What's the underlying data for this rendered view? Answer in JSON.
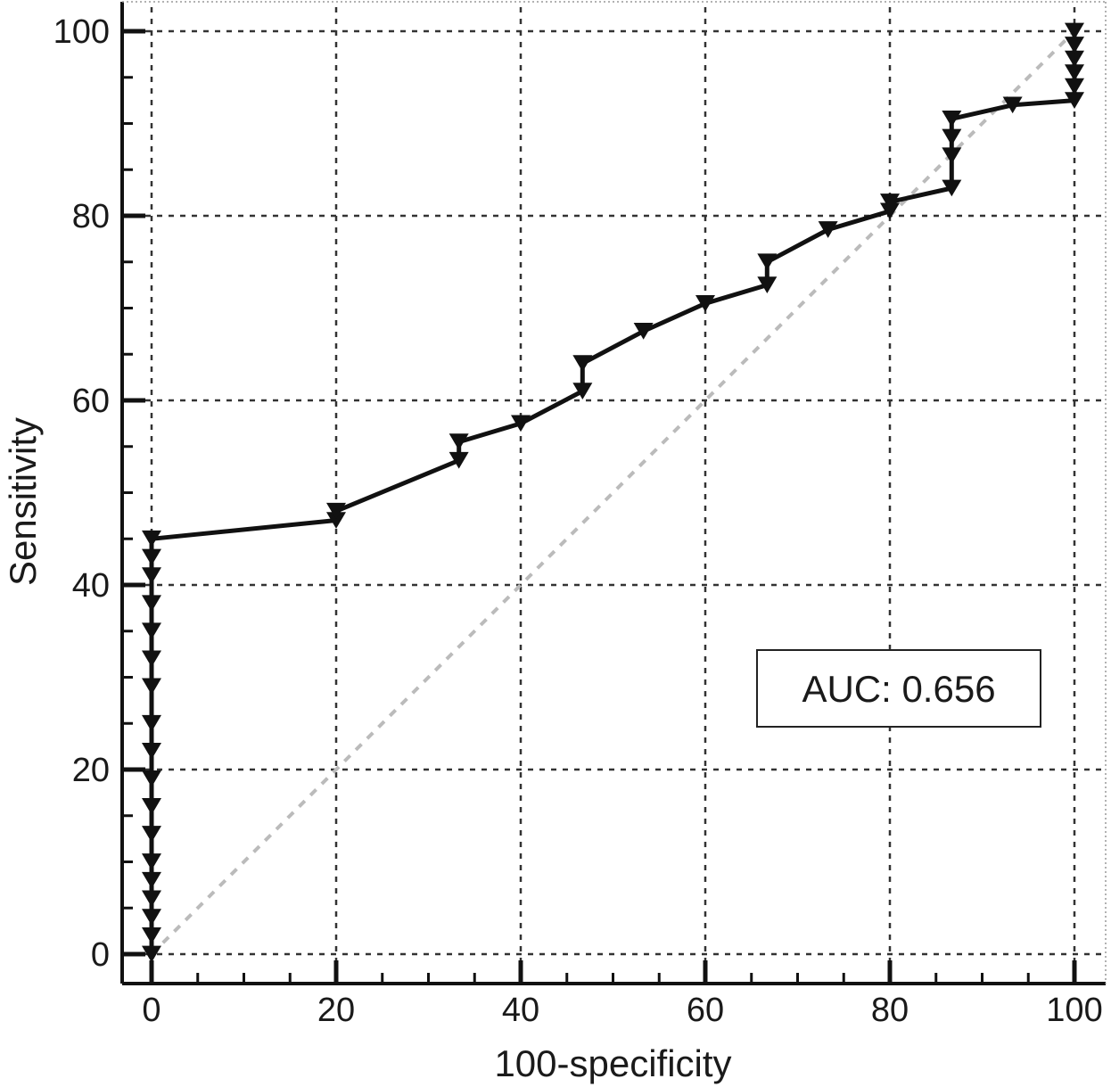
{
  "chart_data": {
    "type": "line",
    "title": "",
    "xlabel": "100-specificity",
    "ylabel": "Sensitivity",
    "xlim": [
      0,
      100
    ],
    "ylim": [
      0,
      100
    ],
    "xticks": [
      "0",
      "20",
      "40",
      "60",
      "80",
      "100"
    ],
    "yticks": [
      "0",
      "20",
      "40",
      "60",
      "80",
      "100"
    ],
    "grid": true,
    "annotation": "AUC: 0.656",
    "colors": {
      "roc_line": "#111111",
      "reference_line": "#bbbbbb",
      "grid": "#333333"
    },
    "series": [
      {
        "points": [
          [
            0,
            0
          ],
          [
            0,
            2
          ],
          [
            0,
            4
          ],
          [
            0,
            6
          ],
          [
            0,
            8
          ],
          [
            0,
            10
          ],
          [
            0,
            13
          ],
          [
            0,
            16
          ],
          [
            0,
            19
          ],
          [
            0,
            22
          ],
          [
            0,
            25
          ],
          [
            0,
            29
          ],
          [
            0,
            32
          ],
          [
            0,
            35
          ],
          [
            0,
            38
          ],
          [
            0,
            41
          ],
          [
            0,
            43
          ],
          [
            0,
            45
          ],
          [
            20,
            47
          ],
          [
            20,
            48
          ],
          [
            33.3,
            53.5
          ],
          [
            33.3,
            55.5
          ],
          [
            40,
            57.5
          ],
          [
            46.7,
            61
          ],
          [
            46.7,
            64
          ],
          [
            53.3,
            67.5
          ],
          [
            60,
            70.5
          ],
          [
            66.7,
            72.5
          ],
          [
            66.7,
            75
          ],
          [
            73.3,
            78.5
          ],
          [
            80,
            80.5
          ],
          [
            80,
            81.5
          ],
          [
            86.7,
            83
          ],
          [
            86.7,
            86.5
          ],
          [
            86.7,
            88.5
          ],
          [
            86.7,
            90.5
          ],
          [
            93.3,
            92
          ],
          [
            100,
            92.5
          ],
          [
            100,
            94
          ],
          [
            100,
            95.5
          ],
          [
            100,
            97
          ],
          [
            100,
            98.5
          ],
          [
            100,
            100
          ]
        ]
      },
      {
        "points": [
          [
            0,
            0
          ],
          [
            100,
            100
          ]
        ]
      }
    ]
  }
}
